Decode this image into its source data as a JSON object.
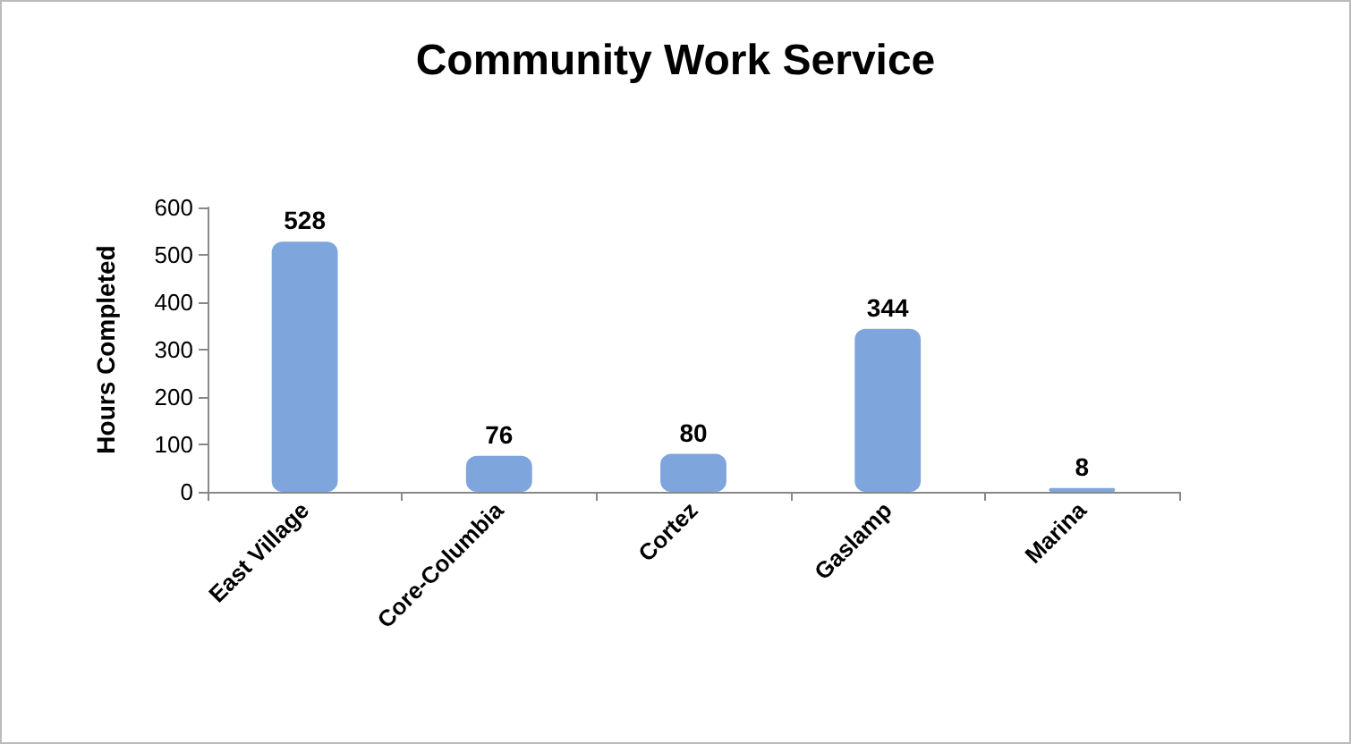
{
  "chart_data": {
    "type": "bar",
    "title": "Community Work Service",
    "ylabel": "Hours Completed",
    "categories": [
      "East Village",
      "Core-Columbia",
      "Cortez",
      "Gaslamp",
      "Marina"
    ],
    "values": [
      528,
      76,
      80,
      344,
      8
    ],
    "color": "#7fa6dc",
    "ylim": [
      0,
      600
    ],
    "yticks": [
      0,
      100,
      200,
      300,
      400,
      500,
      600
    ],
    "grid": false,
    "data_labels": true
  }
}
